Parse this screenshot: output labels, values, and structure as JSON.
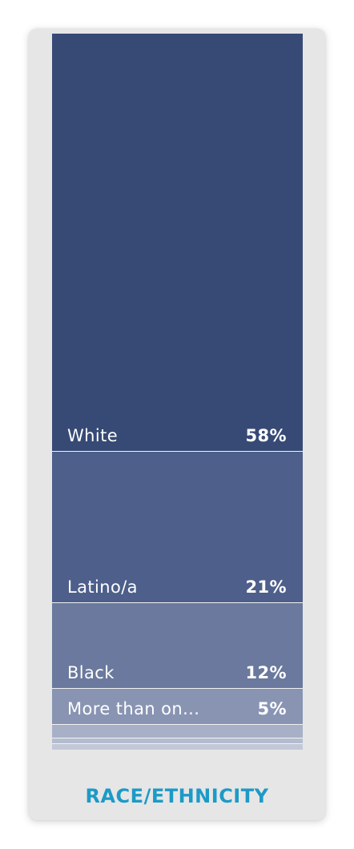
{
  "chart_data": {
    "type": "bar",
    "title": "RACE/ETHNICITY",
    "stacked": true,
    "orientation": "vertical",
    "segments": [
      {
        "label": "White",
        "value": 58,
        "value_label": "58%",
        "color": "#364a75"
      },
      {
        "label": "Latino/a",
        "value": 21,
        "value_label": "21%",
        "color": "#4d5f8a"
      },
      {
        "label": "Black",
        "value": 12,
        "value_label": "12%",
        "color": "#6a799d"
      },
      {
        "label": "More than on...",
        "value": 5,
        "value_label": "5%",
        "color": "#8894b2"
      },
      {
        "label": "",
        "value": 1.8,
        "value_label": "",
        "color": "#a7b0c7"
      },
      {
        "label": "",
        "value": 0.8,
        "value_label": "",
        "color": "#b5bccf"
      },
      {
        "label": "",
        "value": 0.8,
        "value_label": "",
        "color": "#c2c8d8"
      }
    ]
  }
}
